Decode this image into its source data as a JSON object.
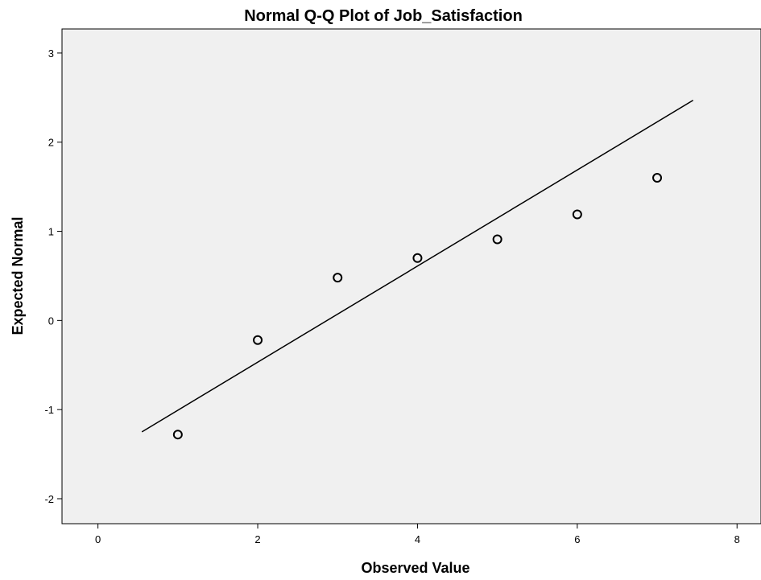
{
  "chart_data": {
    "type": "scatter",
    "title": "Normal Q-Q Plot of Job_Satisfaction",
    "xlabel": "Observed Value",
    "ylabel": "Expected Normal",
    "xlim": [
      -0.45,
      8.3
    ],
    "ylim": [
      -2.28,
      3.27
    ],
    "x_ticks": [
      0,
      2,
      4,
      6,
      8
    ],
    "y_ticks": [
      -2,
      -1,
      0,
      1,
      2,
      3
    ],
    "x_tick_labels": [
      "0",
      "2",
      "4",
      "6",
      "8"
    ],
    "y_tick_labels": [
      "-2",
      "-1",
      "0",
      "1",
      "2",
      "3"
    ],
    "grid": false,
    "legend": "none",
    "series": [
      {
        "x": [
          1,
          2,
          3,
          4,
          5,
          6,
          7
        ],
        "y": [
          -1.28,
          -0.22,
          0.48,
          0.7,
          0.91,
          1.19,
          1.6
        ]
      }
    ],
    "reference_line": {
      "x": [
        0.55,
        7.45
      ],
      "y": [
        -1.25,
        2.47
      ]
    },
    "colors": {
      "plot_background": "#f0f0f0",
      "points": "#000000",
      "line": "#000000"
    }
  }
}
